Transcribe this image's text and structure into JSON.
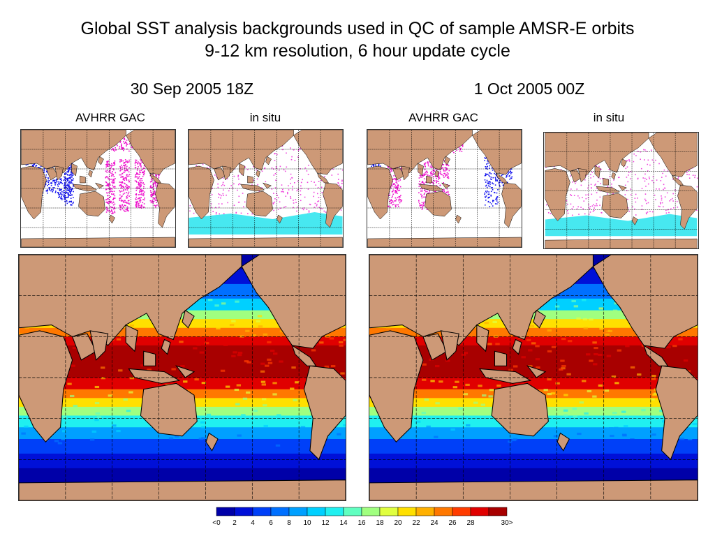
{
  "title": {
    "line1": "Global SST analysis backgrounds used in QC of sample AMSR-E orbits",
    "line2": "9-12 km resolution, 6 hour update cycle"
  },
  "columns": [
    {
      "date": "30 Sep 2005 18Z",
      "labels": [
        "AVHRR GAC",
        "in situ"
      ]
    },
    {
      "date": "1 Oct 2005 00Z",
      "labels": [
        "AVHRR GAC",
        "in situ"
      ]
    }
  ],
  "colors": {
    "land": "#cd9977",
    "ocean_panel": "#ffffff",
    "avhrr_cold": "#1010ee",
    "avhrr_warm": "#ee10cc",
    "insitu_ice": "#33e6ee",
    "insitu_obs": "#ee44dd"
  },
  "colorbar": {
    "tick_labels": [
      "<0",
      "2",
      "4",
      "6",
      "8",
      "10",
      "12",
      "14",
      "16",
      "18",
      "20",
      "22",
      "24",
      "26",
      "28",
      "30>"
    ],
    "colors": [
      "#0000a8",
      "#0010d8",
      "#0040f8",
      "#0070ff",
      "#00a0ff",
      "#00d0ff",
      "#20f0f0",
      "#60ff c0",
      "#a0ff80",
      "#e0ff40",
      "#ffe000",
      "#ffb000",
      "#ff7800",
      "#ff3c00",
      "#e00000",
      "#a80000"
    ]
  }
}
